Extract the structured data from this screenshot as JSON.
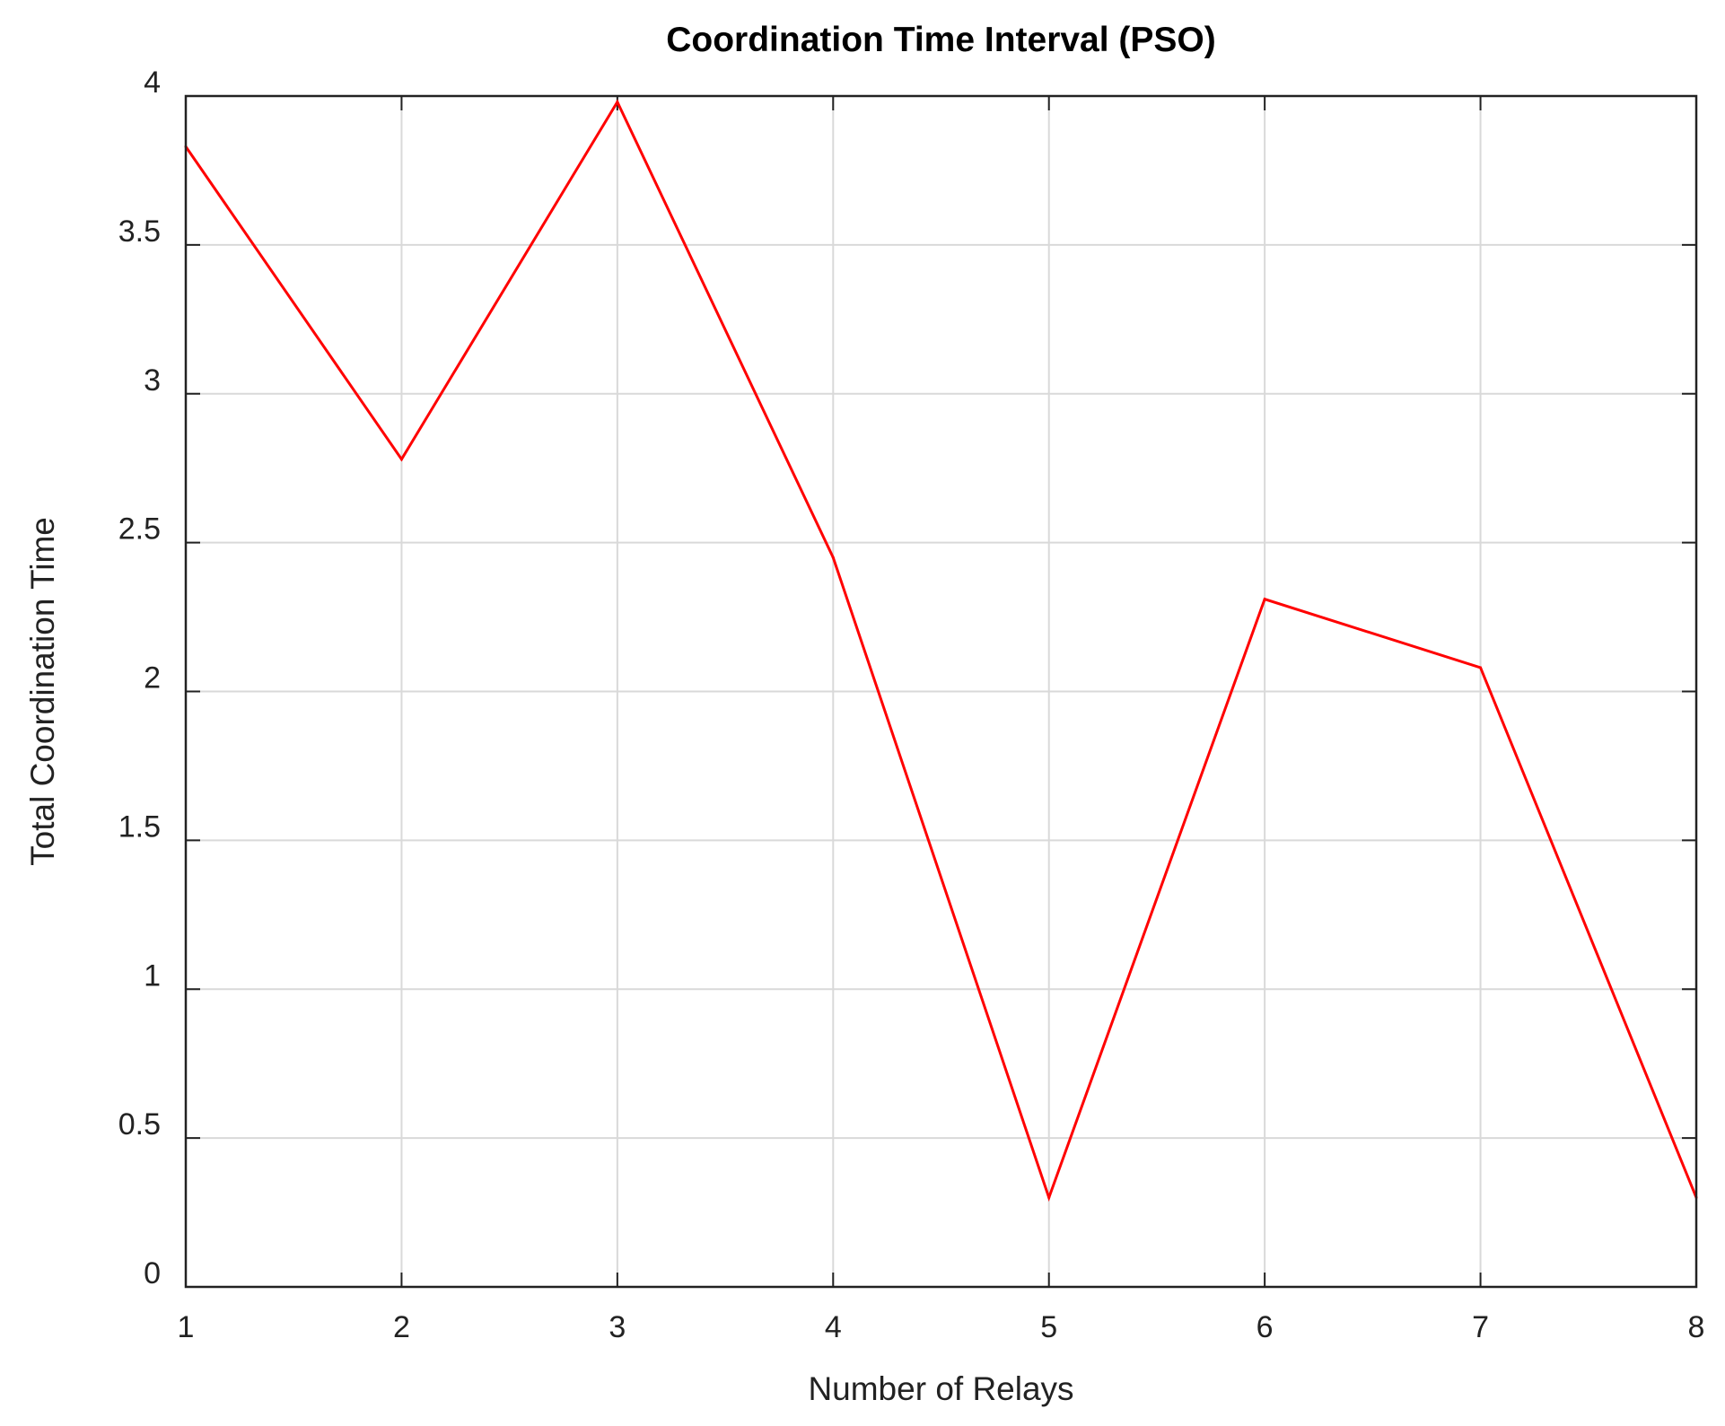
{
  "chart_data": {
    "type": "line",
    "title": "Coordination Time Interval (PSO)",
    "xlabel": "Number of Relays",
    "ylabel": "Total Coordination Time",
    "x": [
      1,
      2,
      3,
      4,
      5,
      6,
      7,
      8
    ],
    "series": [
      {
        "values": [
          3.83,
          2.78,
          3.98,
          2.45,
          0.3,
          2.31,
          2.08,
          0.3
        ],
        "color": "#ff0000"
      }
    ],
    "xlim": [
      1,
      8
    ],
    "ylim": [
      0,
      4
    ],
    "xticks": [
      1,
      2,
      3,
      4,
      5,
      6,
      7,
      8
    ],
    "xtick_labels": [
      "1",
      "2",
      "3",
      "4",
      "5",
      "6",
      "7",
      "8"
    ],
    "yticks": [
      0,
      0.5,
      1,
      1.5,
      2,
      2.5,
      3,
      3.5,
      4
    ],
    "ytick_labels": [
      "0",
      "0.5",
      "1",
      "1.5",
      "2",
      "2.5",
      "3",
      "3.5",
      "4"
    ],
    "grid": true,
    "legend": "none"
  }
}
